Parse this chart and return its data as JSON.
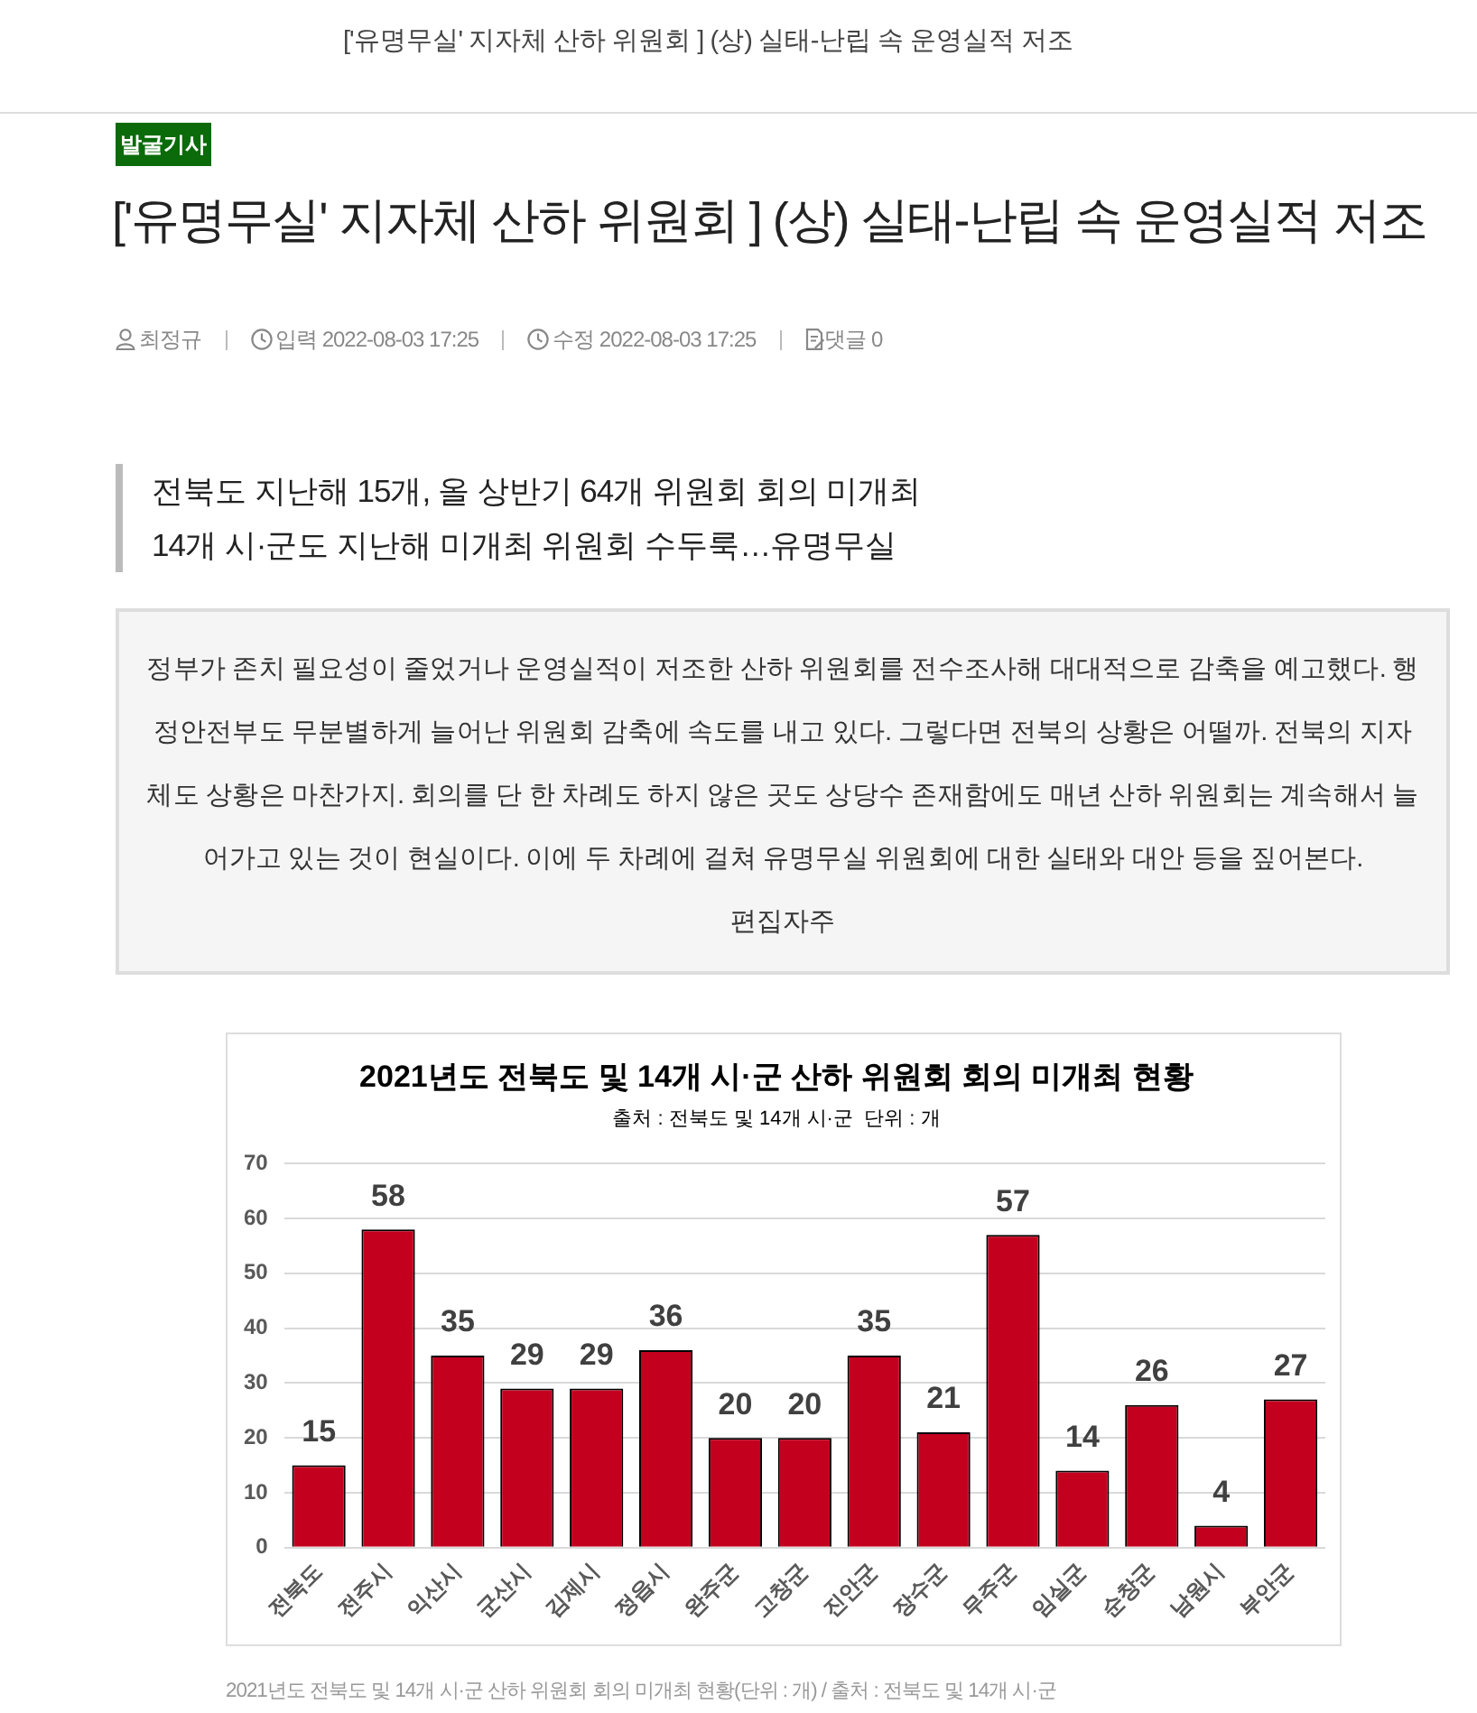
{
  "chart_data": {
    "type": "bar",
    "title": "2021년도 전북도 및 14개 시·군 산하 위원회 회의 미개최 현황",
    "subtitle": "출처 : 전북도 및 14개 시·군  단위 : 개",
    "categories": [
      "전북도",
      "전주시",
      "익산시",
      "군산시",
      "김제시",
      "정읍시",
      "완주군",
      "고창군",
      "진안군",
      "장수군",
      "무주군",
      "임실군",
      "순창군",
      "남원시",
      "부안군"
    ],
    "values": [
      15,
      58,
      35,
      29,
      29,
      36,
      20,
      20,
      35,
      21,
      57,
      14,
      26,
      4,
      27
    ],
    "color": "#c4001f",
    "ylim": [
      0,
      70
    ],
    "yticks": [
      0,
      10,
      20,
      30,
      40,
      50,
      60,
      70
    ],
    "grid": "y",
    "data_labels": true,
    "annotations": [
      "['유명무실' 지자체 산하 위원회 ] (상) 실태-난립 속 운영실적 저조",
      "발굴기사",
      "['유명무실' 지자체 산하 위원회 ] (상) 실태-난립 속 운영실적 저조",
      "최정규",
      "입력 2022-08-03 17:25",
      "수정 2022-08-03 17:25",
      "댓글 0",
      "전북도 지난해 15개, 올 상반기 64개 위원회 회의 미개최",
      "14개 시·군도 지난해 미개최 위원회 수두룩…유명무실",
      "정부가 존치 필요성이 줄었거나 운영실적이 저조한 산하 위원회를 전수조사해 대대적으로 감축을 예고했다. 행정안전부도 무분별하게 늘어난 위원회 감축에 속도를 내고 있다. 그렇다면 전북의 상황은 어떨까. 전북의 지자체도 상황은 마찬가지. 회의를 단 한 차례도 하지 않은 곳도 상당수 존재함에도 매년 산하 위원회는 계속해서 늘어가고 있는 것이 현실이다. 이에 두 차례에 걸쳐 유명무실 위원회에 대한 실태와 대안 등을 짚어본다.",
      "편집자주",
      "2021년도 전북도 및 14개 시·군 산하 위원회 회의 미개최 현황(단위 : 개) / 출처 : 전북도 및 14개 시·군"
    ]
  }
}
